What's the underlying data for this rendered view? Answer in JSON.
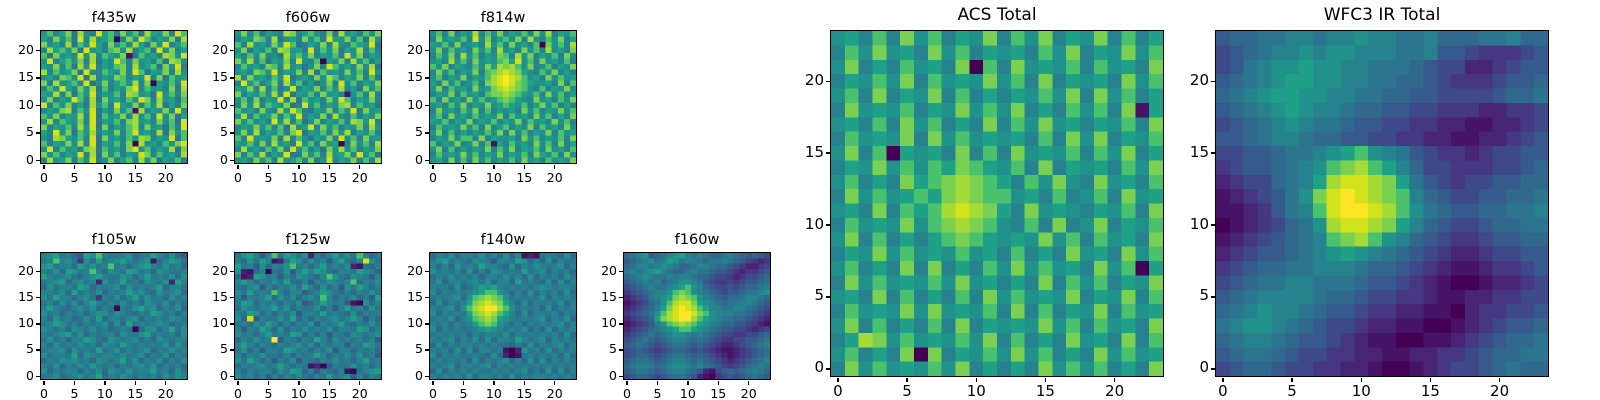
{
  "figure": {
    "background": "#ffffff"
  },
  "colors": {
    "colormap_name": "viridis",
    "spine": "#000000",
    "text": "#000000",
    "colormap_16": [
      "#440154",
      "#461366",
      "#482475",
      "#453781",
      "#3e4989",
      "#375a8c",
      "#31688e",
      "#2b758e",
      "#26838e",
      "#21918c",
      "#1fa187",
      "#4ac16d",
      "#7ad151",
      "#a5db36",
      "#d2e21b",
      "#fde725"
    ]
  },
  "axes": {
    "n": 24,
    "x_ticks": [
      0,
      5,
      10,
      15,
      20
    ],
    "y_ticks": [
      0,
      5,
      10,
      15,
      20
    ]
  },
  "chart_data": {
    "type": "heatmap",
    "colormap": "viridis",
    "grid_encoding": "each panel grid is 24 rows (top to bottom) of 24 hex chars; char 0-f maps to colormap_16 index (0=dark purple low, f=yellow high)",
    "panels": [
      {
        "title": "f435w",
        "size": "small",
        "grid": [
          "9b8ac7d98eab8c9b7da9c8eb",
          "a8c9b7e8d9ab08c9eb8a9c7d",
          "c9a8d7b9ea8c9b8da7c9e8ab",
          "8dab9c7e9a8bc9d8ab7e9c8a",
          "b7c9a8e9d8ba9c17b9a8dc9e",
          "9e8ab9c8d7a9eb8c9a8b7dc9",
          "a9c8b7d9e8a9bc8d9ab7c9e8",
          "d8b9ac7e98ba9c8eb7a9c8d9",
          "9a8cb9e7d8a9cb8a9e8c7b9a",
          "c8d9ab8e79c8ab9d8c0a9b8e",
          "8b9ea8c9d7b8a9ce8b9a8c7d",
          "a9d8c7b9e8a9b8dc9a7e9b8c",
          "9c8a9eb8d7c9a8b9ec8d9a7b",
          "e8b9c8a7d9b8ea9c8b9d7a8c",
          "8a9cd8b9e7a8c9b1d8a9c8e9",
          "b9c8a9d8e7b9ac8d9b8e9c7a",
          "9d8ba9c8e7a9b8cd9a8c9b7e",
          "c8a9b8d9e7c8a9bd8c9a7b8e",
          "a8e9c7b9d8a9c8be9a8d7c9b",
          "98dca9b8e7c9a8b9dc8a9e7b",
          "b8a9c9d8e7a9b8c0d9a8b9ce",
          "9e8b9a8cd7b9a8ce9b8a9d7c",
          "c9b8a9e8d7c9b8a9ec8b9a8d",
          "8d9ac8b9e79c8ab8d9c7a9b8"
        ]
      },
      {
        "title": "f606w",
        "size": "small",
        "grid": [
          "9c8b7a98dc8ab98c7d9a8b9c",
          "8a9cb8d79a8c9b8ea9c8b7d9",
          "b8d9a8c9eb78a9c8d98ba9e7",
          "9c7a9b8dc9a8e8b9c7a9d8b8",
          "a8b9c897dab9c8a9b8e9c7a9",
          "c9d8b7a9c8e98b0a9c8d9b8a",
          "8b9a8cb8d9a79c8eb9a8c9d7",
          "9a8cb9e8a9c8d7b9a8c9b8e9",
          "d8c9a8b9e79a8c9db8a9c8b7",
          "8e9b8ac8d9b8a79c8e9b8a9c",
          "a9c8d8b79e8a9c8b9d8a7c9b",
          "c8a9b9d8e7a9b8c9a819b8d8",
          "9b8c8a9e8d7b9a8c9eb8a9c8",
          "8c9d8ba9c78e9b8a9cd8b9a7",
          "b9a8c98d9eb87a9c8b9e8c9a",
          "9d8b9ac8b9e8a9c7d98b8a9c",
          "c9b8a8e9d8b79c8a9b8dc9e8",
          "8a9c9b8b7d9ae8c9b8a9c8d9",
          "9c8d8a9b8ce7a9b8c9d8a9b8",
          "b8e9a9c8d8b97a9c8e9b8c9a",
          "a9b8c8d9a7e9b8c9a08c9b8d",
          "8d9a8b9c8e9b8a7c9d9b8a9c",
          "c8b9d8a9e78c9b8d9ac8e9b7",
          "9a8c9b8d9ab8c79e8a9c8b8d"
        ]
      },
      {
        "title": "f814w",
        "size": "small",
        "grid": [
          "9b8c8a9d8b9c8a9b8c9d8a9b",
          "8c9a9b8e9c8ab9c8d98b9c8a",
          "a9b8c89a8d9b8c9a8b0c9b8d",
          "9c8b9a8c9b8d9a8c9b8d9a8c",
          "8b9c8d9b8a9cb8d9c8a9b8c9",
          "9a8d9b8c9a9bcae9b8c9a8b8",
          "b9c8a98b9cadcdb9c89b8a9c",
          "8c9b8a9c8bcdedca98b9c8a8",
          "9b8a9c8a9bdefedb9a8c9b9a",
          "a8c9b89b8cdefecba99a8c8b",
          "9c8b9a8c9acdedcb98b8a9c9",
          "8a9c8b9a8bccdcba9b8c9b8a",
          "b8c9a8c9b9abcba98c9a8b9c",
          "9a8b9c8a9c9aba9b8ac9b8a8",
          "8c9a8b9c8b8a9a8c9b8a9c9b",
          "9b8c9a8b9a9c8b9a8c9b8a8c",
          "a9b8a9c8a9b8a9c8b9a8c9b8",
          "8b9a9c9b8c8ab8a9c8b9a8c9",
          "9c8b8a8a9b9c8c9b8a9c8b9a",
          "8a9c9bb8c8a99a8c9b8a9b8c",
          "b8a9c89c8b1a8b9a8c9b8c8a",
          "9c8b8a8a9c8b9c8a9b8c9a8b",
          "8b9a9c9b8a9c8a9b8ca9b8c9",
          "9a8c8b8c9b8a9b8c9a8b9a9c"
        ]
      },
      {
        "title": "f105w",
        "size": "small",
        "grid": [
          "89a7865a9b87789678a87965",
          "78b897396a789a8789168a97",
          "9a7886a8978b78689a879786",
          "8796a978b86987a978698778",
          "a87897689a8779868a787969",
          "789a689782978a78698792a8",
          "697887a968789697878a6887",
          "88796a78796878a897697896",
          "97a886897387968a79786978",
          "78697968a878797869879687",
          "8a87689796870879a8968796",
          "978687868997987687a97868",
          "869786797a68878968787987",
          "78a97868789696a787898678",
          "987869879786787069968a79",
          "8789a796878869879a787869",
          "7978688a9769878968698788",
          "8697879786987a8787879697",
          "788969787a78968789687978",
          "97887a698788797896879687",
          "6879897869878a7968796879",
          "87968797a878687897968786",
          "968788687969879788a78697",
          "789678978a68798687869798"
        ]
      },
      {
        "title": "f125w",
        "size": "small",
        "grid": [
          "79a858b7a9792868a797b868",
          "8697a8127a9697858a768e97",
          "a78596879b7868a787921768",
          "92168076958a8a976887a986",
          "612a97858698768b97698758",
          "8a868797a7685879878b6879",
          "76895868797a86968597a868",
          "97a787b8688578a976868797",
          "85878a69796897b86879685a",
          "7a968786879568a878510968",
          "698788a79687796858a78697",
          "87a96868795887a787696878",
          "96e587797a686878978a8586",
          "78697a86868795878a768797",
          "8587a869687978796887a968",
          "97868a787a96868587698789",
          "687978f587687a8697878685",
          "8a8687687897968788587a97",
          "79685887a978687958868786",
          "8687977686878a8687979685",
          "97a868587958768797868a78",
          "6878978a8687120587797868",
          "868788697a9685876810789a",
          "978685868797687a78958687"
        ]
      },
      {
        "title": "f140w",
        "size": "small",
        "grid": [
          "687968879786968121787696",
          "79a78769875887a968696877",
          "86869787a887696879878968",
          "978786968698787a78968786",
          "687978786887978696878697",
          "79688789796886a787696968",
          "87869678a9a8787878987887",
          "96878789abb9868696878696",
          "7878969bcdcb978787968787",
          "696878acdedca86968787968",
          "878969bdeffdb97878696878",
          "968787acdedba86968878687",
          "7879689bcdca987878968796",
          "8786878abcb9868687878968",
          "968787789a98787968696878",
          "787878687887968787878696",
          "87896879696887a878968787",
          "696878878787768696878968",
          "878696968878102978696878",
          "968787787696201787878696",
          "787878696878968696968787",
          "878968878968787878787878",
          "696878787787878968696968",
          "878787968878696878878787"
        ]
      },
      {
        "title": "f160w",
        "size": "small",
        "grid": [
          "678956789a87876678765654",
          "5678978a9788767787654323",
          "678878987667887665432234",
          "78789a876678776554323345",
          "678987787887665443234456",
          "567878678998754334345567",
          "456787789ab9865445456678",
          "34567889bcb9876545567789",
          "2345789acdcb987656678876",
          "1234679bdeeca98767788765",
          "234568acefedba8877887654",
          "345679bdeffecb9888776543",
          "23456acdeffdba9877665432",
          "1234589bcdcba98766554321",
          "23456789abba987655443234",
          "345676789987876544334456",
          "456765678876765433445567",
          "567654567765654322345678",
          "456543456654543211234567",
          "456654567765654321234567",
          "567765678876765432345678",
          "678876789987876543456787",
          "567765678876521456567876",
          "456654567765210345456765"
        ]
      },
      {
        "title": "ACS Total",
        "size": "large",
        "grid": [
          "9a8b8c9b8a9c8b9c8a9c8b8a",
          "8b9c9a8c9b8a9a8b9c8a9c9b",
          "9c8a8b9a8c0b8c9a9b8b9a8c",
          "8a9b9c8b9a9c9b8c8a9a8c9b",
          "9b8c8a9c8b8a8a9b9c8c9b8a",
          "8c9a9b8a9c9b9c8a8b9b8c1a",
          "9a8b8c9b8a8c8b9c9a8a9b8c",
          "8b9a9c8c9b9a9a8b8c9c8a9b",
          "9c8b0a9a8c8b8c9a9b8b9c8a",
          "8a9c9b9bacba9b8c8a9a8b9c",
          "9b8a8cabcdcba8b9c98c9a8b",
          "8c9b9abacdcbb9a8b89b8c9a",
          "9a8c8babdedca8c9a98a9b8c",
          "8b9a9c9bcdcb98b8c89c8a9b",
          "9c8b8a8abcba9a9c9b8b9a8c",
          "8a9c9b9a9b9a8b8a8c9a8c9b",
          "9b8a8c8c8a8b9c9b9a8c9b0a",
          "8c9b9a9b9c9a8a8c8b9b8a9c",
          "9a8c8b8a8b8c9b9a9c8a9c8b",
          "8b9a9c9c9a9b8c8b8a9c8b9a",
          "9c8b8a8b8c8a9a9c9b8b9a8c",
          "8adc9b9a9b9c8b8a8c9a8c8b",
          "9b8a8c0c8a9b9c9b8a8c9b9a",
          "8c9b9a9b9c8a8a8c9b9b8a8c"
        ]
      },
      {
        "title": "WFC3 IR Total",
        "size": "large",
        "grid": [
          "566778878898877866677866",
          "456788989988877855433345",
          "457899a99887776544223455",
          "56789aa99887766543334556",
          "6789aa998877665544445667",
          "56789a988766554433322334",
          "456789877655443322112234",
          "556788766554433221122345",
          "445567789ab9875433234455",
          "34556789bcdba86443334456",
          "2344678adeedca7543445566",
          "1234579cefedcb8654455667",
          "1123578beffedb9765566778",
          "01234679deedca8654456677",
          "12345678bcdb986543345566",
          "234556789a98765432234455",
          "345667788876654321123345",
          "456778877765543210012234",
          "567888876654433211223344",
          "678988765543322110233445",
          "789987654432211001234556",
          "678876554321100112345667",
          "567765443322112233456677",
          "456654433221001234456766"
        ]
      }
    ]
  }
}
